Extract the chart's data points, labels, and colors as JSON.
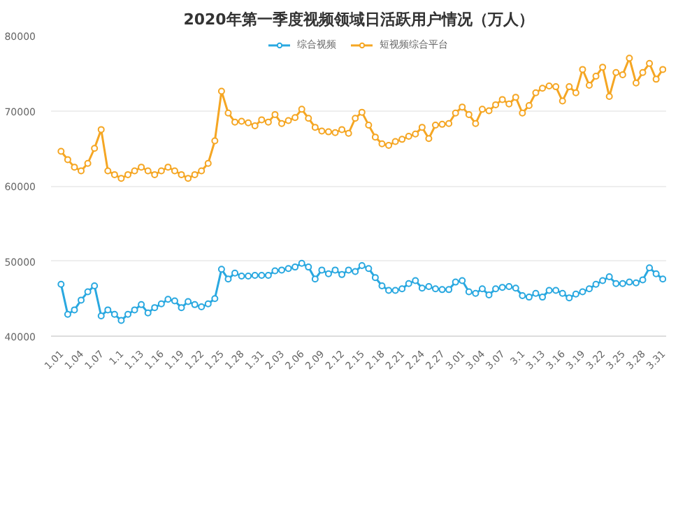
{
  "chart_data": {
    "type": "line",
    "title": "2020年第一季度视频领域日活跃用户情况（万人）",
    "categories": [
      "1.01",
      null,
      null,
      "1.04",
      null,
      null,
      "1.07",
      null,
      null,
      "1.1",
      null,
      null,
      "1.13",
      null,
      null,
      "1.16",
      null,
      null,
      "1.19",
      null,
      null,
      "1.22",
      null,
      null,
      "1.25",
      null,
      null,
      "1.28",
      null,
      null,
      "1.31",
      null,
      null,
      "2.03",
      null,
      null,
      "2.06",
      null,
      null,
      "2.09",
      null,
      null,
      "2.12",
      null,
      null,
      "2.15",
      null,
      null,
      "2.18",
      null,
      null,
      "2.21",
      null,
      null,
      "2.24",
      null,
      null,
      "2.27",
      null,
      null,
      "3.01",
      null,
      null,
      "3.04",
      null,
      null,
      "3.07",
      null,
      null,
      "3.1",
      null,
      null,
      "3.13",
      null,
      null,
      "3.16",
      null,
      null,
      "3.19",
      null,
      null,
      "3.22",
      null,
      null,
      "3.25",
      null,
      null,
      "3.28",
      null,
      null,
      "3.31"
    ],
    "series": [
      {
        "name": "综合视频",
        "color": "#29a8e0",
        "values": [
          46900,
          42900,
          43500,
          44800,
          45900,
          46700,
          42700,
          43500,
          42900,
          42100,
          42900,
          43500,
          44200,
          43100,
          43800,
          44300,
          44900,
          44700,
          43800,
          44600,
          44200,
          43900,
          44300,
          45000,
          48900,
          47600,
          48400,
          48000,
          48000,
          48100,
          48100,
          48100,
          48700,
          48800,
          49000,
          49200,
          49700,
          49200,
          47600,
          48800,
          48300,
          48800,
          48200,
          48800,
          48600,
          49400,
          49000,
          47800,
          46700,
          46100,
          46100,
          46300,
          47000,
          47400,
          46400,
          46600,
          46300,
          46200,
          46200,
          47200,
          47400,
          45900,
          45700,
          46300,
          45500,
          46300,
          46500,
          46600,
          46400,
          45400,
          45200,
          45700,
          45200,
          46100,
          46100,
          45700,
          45100,
          45600,
          45900,
          46300,
          46900,
          47400,
          47900,
          47000,
          47000,
          47200,
          47100,
          47500,
          49100,
          48300,
          47600
        ]
      },
      {
        "name": "短视频综合平台",
        "color": "#f5a623",
        "values": [
          64600,
          63500,
          62500,
          62000,
          63000,
          65000,
          67500,
          62000,
          61500,
          61000,
          61500,
          62000,
          62500,
          62000,
          61500,
          62000,
          62500,
          62000,
          61500,
          61000,
          61500,
          62000,
          63000,
          66000,
          72600,
          69700,
          68500,
          68600,
          68400,
          68000,
          68800,
          68500,
          69500,
          68300,
          68700,
          69100,
          70200,
          69000,
          67800,
          67300,
          67200,
          67100,
          67500,
          67000,
          69000,
          69800,
          68100,
          66500,
          65600,
          65400,
          65900,
          66200,
          66600,
          66900,
          67800,
          66300,
          68100,
          68200,
          68300,
          69700,
          70500,
          69500,
          68300,
          70200,
          70000,
          70800,
          71500,
          70900,
          71800,
          69700,
          70700,
          72400,
          73000,
          73300,
          73200,
          71300,
          73200,
          72400,
          75500,
          73400,
          74600,
          75800,
          71900,
          75100,
          74800,
          77000,
          73700,
          75100,
          76300,
          74200,
          75500
        ]
      }
    ],
    "ylim": [
      40000,
      80000
    ],
    "yticks": [
      40000,
      50000,
      60000,
      70000,
      80000
    ],
    "grid": "y",
    "legend": "top",
    "marker": "circle",
    "line_style": "solid"
  }
}
